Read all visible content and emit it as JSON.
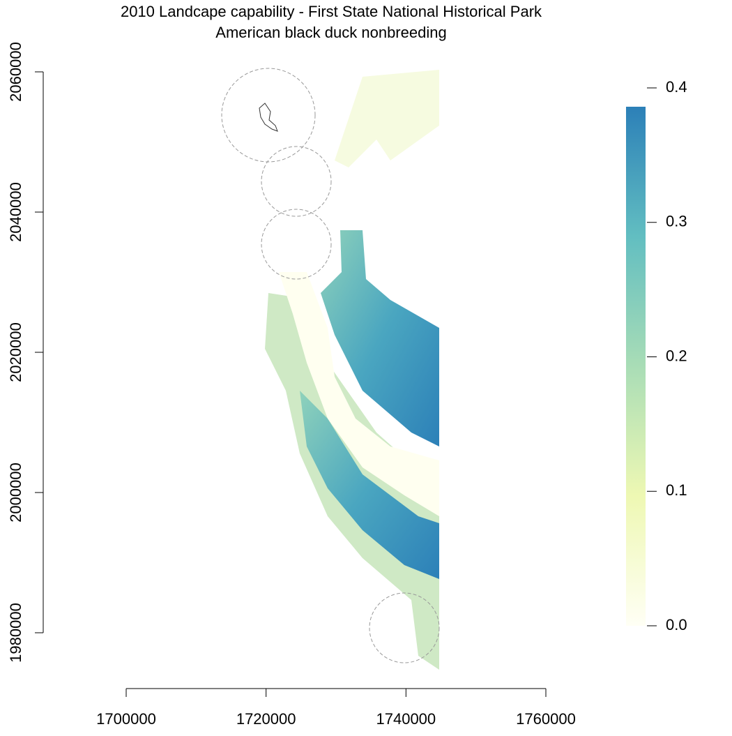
{
  "chart_data": {
    "type": "raster",
    "title": "2010 Landcape capability - First State National Historical Park",
    "subtitle": "American black duck nonbreeding",
    "xlim": [
      1700000,
      1760000
    ],
    "xticks": [
      1700000,
      1720000,
      1740000,
      1760000
    ],
    "ylim": [
      1980000,
      2060000
    ],
    "yticks": [
      1980000,
      2000000,
      2020000,
      2040000,
      2060000
    ],
    "colorbar": {
      "lim": [
        0,
        0.386
      ],
      "ticks": [
        {
          "value": 0,
          "label": "0.0"
        },
        0.1,
        0.2,
        0.3,
        0.4
      ],
      "colors": [
        "#fffff5",
        "#eef8b3",
        "#a9ddb6",
        "#62bec1",
        "#2c80b8"
      ]
    }
  }
}
